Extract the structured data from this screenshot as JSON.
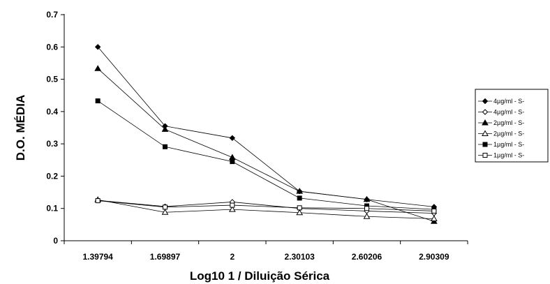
{
  "chart_data": {
    "type": "line",
    "title": "",
    "xlabel": "Log10 1 / Diluição Sérica",
    "ylabel": "D.O. MÉDIA",
    "categories": [
      "1.39794",
      "1.69897",
      "2",
      "2.30103",
      "2.60206",
      "2.90309"
    ],
    "ylim": [
      0,
      0.7
    ],
    "yticks": [
      "0",
      "0.1",
      "0.2",
      "0.3",
      "0.4",
      "0.5",
      "0.6",
      "0.7"
    ],
    "grid": false,
    "legend_position": "right",
    "series": [
      {
        "name": "4µg/ml - S-",
        "marker": "diamond",
        "filled": true,
        "values": [
          0.6,
          0.355,
          0.318,
          0.153,
          0.128,
          0.105
        ]
      },
      {
        "name": "4µg/ml - S-",
        "marker": "diamond",
        "filled": false,
        "values": [
          0.125,
          0.106,
          0.12,
          0.1,
          0.092,
          0.085
        ]
      },
      {
        "name": "2µg/ml - S-",
        "marker": "triangle",
        "filled": true,
        "values": [
          0.533,
          0.345,
          0.258,
          0.153,
          0.128,
          0.06
        ]
      },
      {
        "name": "2µg/ml - S-",
        "marker": "triangle",
        "filled": false,
        "values": [
          0.127,
          0.088,
          0.097,
          0.087,
          0.075,
          0.068
        ]
      },
      {
        "name": "1µg/ml - S-",
        "marker": "square",
        "filled": true,
        "values": [
          0.433,
          0.291,
          0.245,
          0.132,
          0.108,
          0.097
        ]
      },
      {
        "name": "1µg/ml - S-",
        "marker": "square",
        "filled": false,
        "values": [
          0.124,
          0.104,
          0.11,
          0.102,
          0.1,
          0.092
        ]
      }
    ]
  }
}
